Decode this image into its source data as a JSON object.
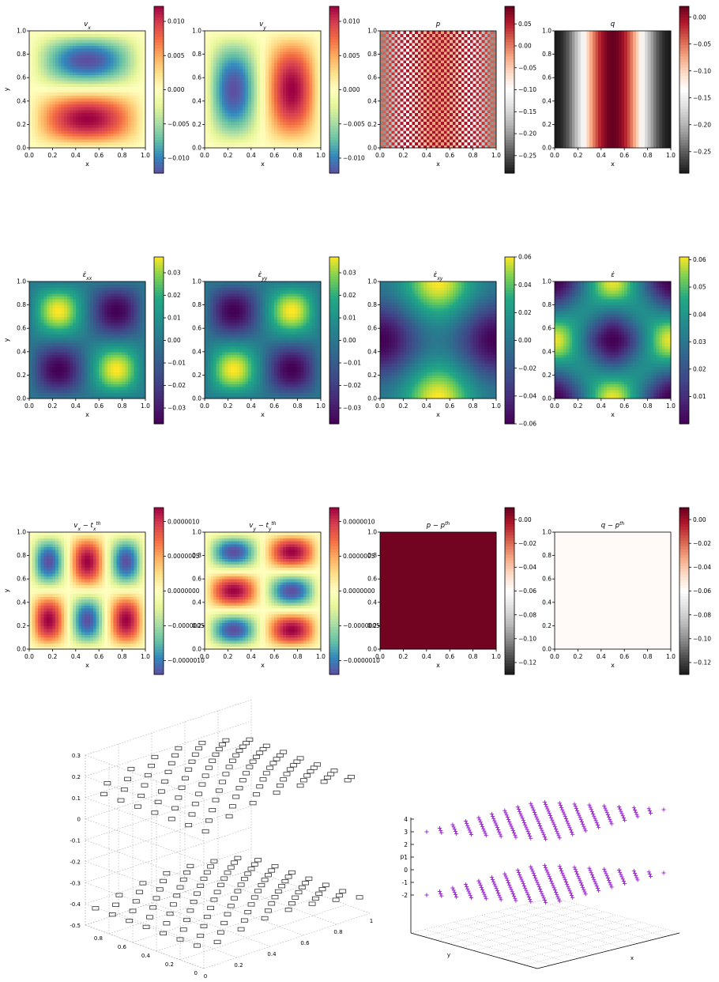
{
  "figure": {
    "grid_rows": 3,
    "grid_cols": 4,
    "panels": [
      {
        "id": "vx",
        "title_parts": [
          [
            "v",
            ""
          ],
          [
            "x",
            "sub"
          ]
        ],
        "colormap": "spectral",
        "field": "vx",
        "xlabel": "x",
        "ylabel": "y",
        "xticks": [
          "0.0",
          "0.2",
          "0.4",
          "0.6",
          "0.8",
          "1.0"
        ],
        "yticks": [
          "0.0",
          "0.2",
          "0.4",
          "0.6",
          "0.8",
          "1.0"
        ],
        "colorbar_ticks": [
          {
            "v": 0.01,
            "t": "0.010"
          },
          {
            "v": 0.005,
            "t": "0.005"
          },
          {
            "v": 0.0,
            "t": "0.000"
          },
          {
            "v": -0.005,
            "t": "−0.005"
          },
          {
            "v": -0.01,
            "t": "−0.010"
          }
        ],
        "colorbar_range": [
          -0.0122,
          0.0122
        ]
      },
      {
        "id": "vy",
        "title_parts": [
          [
            "v",
            ""
          ],
          [
            "y",
            "sub"
          ]
        ],
        "colormap": "spectral",
        "field": "vy",
        "xlabel": "x",
        "ylabel": "y",
        "xticks": [
          "0.0",
          "0.2",
          "0.4",
          "0.6",
          "0.8",
          "1.0"
        ],
        "yticks": [
          "0.0",
          "0.2",
          "0.4",
          "0.6",
          "0.8",
          "1.0"
        ],
        "colorbar_ticks": [
          {
            "v": 0.01,
            "t": "0.010"
          },
          {
            "v": 0.005,
            "t": "0.005"
          },
          {
            "v": 0.0,
            "t": "0.000"
          },
          {
            "v": -0.005,
            "t": "−0.005"
          },
          {
            "v": -0.01,
            "t": "−0.010"
          }
        ],
        "colorbar_range": [
          -0.0122,
          0.0122
        ]
      },
      {
        "id": "p",
        "title_parts": [
          [
            "p",
            ""
          ]
        ],
        "colormap": "rdgy",
        "field": "p",
        "xlabel": "x",
        "ylabel": "y",
        "xticks": [
          "0.0",
          "0.2",
          "0.4",
          "0.6",
          "0.8",
          "1.0"
        ],
        "yticks": [
          "0.0",
          "0.2",
          "0.4",
          "0.6",
          "0.8",
          "1.0"
        ],
        "colorbar_ticks": [
          {
            "v": 0.05,
            "t": "0.05"
          },
          {
            "v": 0.0,
            "t": "0.00"
          },
          {
            "v": -0.05,
            "t": "−0.05"
          },
          {
            "v": -0.1,
            "t": "−0.10"
          },
          {
            "v": -0.15,
            "t": "−0.15"
          },
          {
            "v": -0.2,
            "t": "−0.20"
          },
          {
            "v": -0.25,
            "t": "−0.25"
          }
        ],
        "colorbar_range": [
          -0.29,
          0.09
        ]
      },
      {
        "id": "q",
        "title_parts": [
          [
            "q",
            ""
          ]
        ],
        "colormap": "rdgy",
        "field": "q",
        "xlabel": "x",
        "ylabel": "y",
        "xticks": [
          "0.0",
          "0.2",
          "0.4",
          "0.6",
          "0.8",
          "1.0"
        ],
        "yticks": [
          "0.0",
          "0.2",
          "0.4",
          "0.6",
          "0.8",
          "1.0"
        ],
        "colorbar_ticks": [
          {
            "v": 0.0,
            "t": "0.00"
          },
          {
            "v": -0.05,
            "t": "−0.05"
          },
          {
            "v": -0.1,
            "t": "−0.10"
          },
          {
            "v": -0.15,
            "t": "−0.15"
          },
          {
            "v": -0.2,
            "t": "−0.20"
          },
          {
            "v": -0.25,
            "t": "−0.25"
          }
        ],
        "colorbar_range": [
          -0.29,
          0.02
        ]
      },
      {
        "id": "exx",
        "title_parts": [
          [
            "ε̇",
            ""
          ],
          [
            "xx",
            "sub"
          ]
        ],
        "colormap": "viridis",
        "field": "exx",
        "xlabel": "x",
        "ylabel": "y",
        "xticks": [
          "0.0",
          "0.2",
          "0.4",
          "0.6",
          "0.8",
          "1.0"
        ],
        "yticks": [
          "0.0",
          "0.2",
          "0.4",
          "0.6",
          "0.8",
          "1.0"
        ],
        "colorbar_ticks": [
          {
            "v": 0.03,
            "t": "0.03"
          },
          {
            "v": 0.02,
            "t": "0.02"
          },
          {
            "v": 0.01,
            "t": "0.01"
          },
          {
            "v": 0.0,
            "t": "0.00"
          },
          {
            "v": -0.01,
            "t": "−0.01"
          },
          {
            "v": -0.02,
            "t": "−0.02"
          },
          {
            "v": -0.03,
            "t": "−0.03"
          }
        ],
        "colorbar_range": [
          -0.037,
          0.037
        ]
      },
      {
        "id": "eyy",
        "title_parts": [
          [
            "ε̇",
            ""
          ],
          [
            "yy",
            "sub"
          ]
        ],
        "colormap": "viridis",
        "field": "eyy",
        "xlabel": "x",
        "ylabel": "y",
        "xticks": [
          "0.0",
          "0.2",
          "0.4",
          "0.6",
          "0.8",
          "1.0"
        ],
        "yticks": [
          "0.0",
          "0.2",
          "0.4",
          "0.6",
          "0.8",
          "1.0"
        ],
        "colorbar_ticks": [
          {
            "v": 0.03,
            "t": "0.03"
          },
          {
            "v": 0.02,
            "t": "0.02"
          },
          {
            "v": 0.01,
            "t": "0.01"
          },
          {
            "v": 0.0,
            "t": "0.00"
          },
          {
            "v": -0.01,
            "t": "−0.01"
          },
          {
            "v": -0.02,
            "t": "−0.02"
          },
          {
            "v": -0.03,
            "t": "−0.03"
          }
        ],
        "colorbar_range": [
          -0.037,
          0.037
        ]
      },
      {
        "id": "exy",
        "title_parts": [
          [
            "ε̇",
            ""
          ],
          [
            "xy",
            "sub"
          ]
        ],
        "colormap": "viridis",
        "field": "exy",
        "xlabel": "x",
        "ylabel": "y",
        "xticks": [
          "0.0",
          "0.2",
          "0.4",
          "0.6",
          "0.8",
          "1.0"
        ],
        "yticks": [
          "0.0",
          "0.2",
          "0.4",
          "0.6",
          "0.8",
          "1.0"
        ],
        "colorbar_ticks": [
          {
            "v": 0.06,
            "t": "0.06"
          },
          {
            "v": 0.04,
            "t": "0.04"
          },
          {
            "v": 0.02,
            "t": "0.02"
          },
          {
            "v": 0.0,
            "t": "0.00"
          },
          {
            "v": -0.02,
            "t": "−0.02"
          },
          {
            "v": -0.04,
            "t": "−0.04"
          },
          {
            "v": -0.06,
            "t": "−0.06"
          }
        ],
        "colorbar_range": [
          -0.06,
          0.06
        ]
      },
      {
        "id": "e",
        "title_parts": [
          [
            "ε̇",
            ""
          ]
        ],
        "colormap": "viridis",
        "field": "e",
        "xlabel": "x",
        "ylabel": "y",
        "xticks": [
          "0.0",
          "0.2",
          "0.4",
          "0.6",
          "0.8",
          "1.0"
        ],
        "yticks": [
          "0.0",
          "0.2",
          "0.4",
          "0.6",
          "0.8",
          "1.0"
        ],
        "colorbar_ticks": [
          {
            "v": 0.06,
            "t": "0.06"
          },
          {
            "v": 0.05,
            "t": "0.05"
          },
          {
            "v": 0.04,
            "t": "0.04"
          },
          {
            "v": 0.03,
            "t": "0.03"
          },
          {
            "v": 0.02,
            "t": "0.02"
          },
          {
            "v": 0.01,
            "t": "0.01"
          }
        ],
        "colorbar_range": [
          0.0,
          0.061
        ]
      },
      {
        "id": "vx_err",
        "title_parts": [
          [
            "v",
            ""
          ],
          [
            "x",
            "sub"
          ],
          [
            " − t",
            ""
          ],
          [
            "x",
            "sub"
          ],
          [
            "th",
            "sup"
          ]
        ],
        "colormap": "spectral",
        "field": "vx_err",
        "xlabel": "x",
        "ylabel": "y",
        "xticks": [
          "0.0",
          "0.2",
          "0.4",
          "0.6",
          "0.8",
          "1.0"
        ],
        "yticks": [
          "0.0",
          "0.2",
          "0.4",
          "0.6",
          "0.8",
          "1.0"
        ],
        "colorbar_ticks": [
          {
            "v": 1e-06,
            "t": "0.0000010"
          },
          {
            "v": 5e-07,
            "t": "0.0000005"
          },
          {
            "v": 0.0,
            "t": "0.0000000"
          },
          {
            "v": -5e-07,
            "t": "−0.0000005"
          },
          {
            "v": -1e-06,
            "t": "−0.0000010"
          }
        ],
        "colorbar_range": [
          -1.2e-06,
          1.2e-06
        ]
      },
      {
        "id": "vy_err",
        "title_parts": [
          [
            "v",
            ""
          ],
          [
            "y",
            "sub"
          ],
          [
            " − t",
            ""
          ],
          [
            "y",
            "sub"
          ],
          [
            "th",
            "sup"
          ]
        ],
        "colormap": "spectral",
        "field": "vy_err",
        "xlabel": "x",
        "ylabel": "y",
        "xticks": [
          "0.0",
          "0.2",
          "0.4",
          "0.6",
          "0.8",
          "1.0"
        ],
        "yticks": [
          "0.0",
          "0.2",
          "0.4",
          "0.6",
          "0.8",
          "1.0"
        ],
        "colorbar_ticks": [
          {
            "v": 1e-06,
            "t": "0.0000010"
          },
          {
            "v": 5e-07,
            "t": "0.0000005"
          },
          {
            "v": 0.0,
            "t": "0.0000000"
          },
          {
            "v": -5e-07,
            "t": "−0.0000005"
          },
          {
            "v": -1e-06,
            "t": "−0.0000010"
          }
        ],
        "colorbar_range": [
          -1.2e-06,
          1.2e-06
        ]
      },
      {
        "id": "p_err",
        "title_parts": [
          [
            "p − p",
            ""
          ],
          [
            "th",
            "sup"
          ]
        ],
        "colormap": "rdgy",
        "field": "p_err",
        "xlabel": "x",
        "ylabel": "y",
        "xticks": [
          "0.0",
          "0.2",
          "0.4",
          "0.6",
          "0.8",
          "1.0"
        ],
        "yticks": [
          "0.0",
          "0.2",
          "0.4",
          "0.6",
          "0.8",
          "1.0"
        ],
        "colorbar_ticks": [
          {
            "v": 0.0,
            "t": "0.00"
          },
          {
            "v": -0.02,
            "t": "−0.02"
          },
          {
            "v": -0.04,
            "t": "−0.04"
          },
          {
            "v": -0.06,
            "t": "−0.06"
          },
          {
            "v": -0.08,
            "t": "−0.08"
          },
          {
            "v": -0.1,
            "t": "−0.10"
          },
          {
            "v": -0.12,
            "t": "−0.12"
          }
        ],
        "colorbar_range": [
          -0.13,
          0.01
        ]
      },
      {
        "id": "q_err",
        "title_parts": [
          [
            "q − p",
            ""
          ],
          [
            "th",
            "sup"
          ]
        ],
        "colormap": "rdgy",
        "field": "q_err",
        "xlabel": "x",
        "ylabel": "y",
        "xticks": [
          "0.0",
          "0.2",
          "0.4",
          "0.6",
          "0.8",
          "1.0"
        ],
        "yticks": [
          "0.0",
          "0.2",
          "0.4",
          "0.6",
          "0.8",
          "1.0"
        ],
        "colorbar_ticks": [
          {
            "v": 0.0,
            "t": "0.00"
          },
          {
            "v": -0.02,
            "t": "−0.02"
          },
          {
            "v": -0.04,
            "t": "−0.04"
          },
          {
            "v": -0.06,
            "t": "−0.06"
          },
          {
            "v": -0.08,
            "t": "−0.08"
          },
          {
            "v": -0.1,
            "t": "−0.10"
          },
          {
            "v": -0.12,
            "t": "−0.12"
          }
        ],
        "colorbar_range": [
          -0.13,
          0.01
        ]
      }
    ]
  },
  "bottom_left_3d": {
    "z_ticks": [
      "0.3",
      "0.2",
      "0.1",
      "0",
      "-0.1",
      "-0.2",
      "-0.3",
      "-0.4",
      "-0.5"
    ],
    "y_ticks": [
      "0.8",
      "0.6",
      "0.4",
      "0.2",
      "0"
    ],
    "x_ticks": [
      "0",
      "0.2",
      "0.4",
      "0.6",
      "0.8",
      "1"
    ],
    "marker": "open-square",
    "color": "#333333"
  },
  "bottom_right_3d": {
    "z_label": "p",
    "z_ticks": [
      "4",
      "3",
      "2",
      "1",
      "0",
      "-1",
      "-2"
    ],
    "x_label": "x",
    "y_label": "y",
    "marker": "plus",
    "color": "#9a1fd0"
  },
  "chart_data": [
    {
      "type": "heatmap",
      "title": "v_x",
      "xlabel": "x",
      "ylabel": "y",
      "xlim": [
        0,
        1
      ],
      "ylim": [
        0,
        1
      ],
      "colorbar": [
        -0.0122,
        0.0122
      ],
      "pattern": "vx = 0.0122*sin(pi*x)*sin(2*pi*y): min at (0.5,0.75), max at (0.5,0.25)"
    },
    {
      "type": "heatmap",
      "title": "v_y",
      "xlabel": "x",
      "ylabel": "y",
      "xlim": [
        0,
        1
      ],
      "ylim": [
        0,
        1
      ],
      "colorbar": [
        -0.0122,
        0.0122
      ],
      "pattern": "vy = -0.0122*sin(2*pi*x)*sin(pi*y): min at (0.25,0.5), max at (0.75,0.5)"
    },
    {
      "type": "heatmap",
      "title": "p",
      "xlabel": "x",
      "ylabel": "y",
      "xlim": [
        0,
        1
      ],
      "ylim": [
        0,
        1
      ],
      "colorbar": [
        -0.29,
        0.09
      ],
      "pattern": "checkerboard oscillation around x-dependent profile, max at x=0.5"
    },
    {
      "type": "heatmap",
      "title": "q",
      "xlabel": "x",
      "ylabel": "y",
      "xlim": [
        0,
        1
      ],
      "ylim": [
        0,
        1
      ],
      "colorbar": [
        -0.29,
        0.02
      ],
      "pattern": "x-only profile, max 0.02 at x=0.5, min at x=0 and x=1"
    },
    {
      "type": "heatmap",
      "title": "eps_xx",
      "xlabel": "x",
      "ylabel": "y",
      "xlim": [
        0,
        1
      ],
      "ylim": [
        0,
        1
      ],
      "colorbar": [
        -0.037,
        0.037
      ],
      "pattern": "-0.037*sin(2*pi*x)*sin(2*pi*y)"
    },
    {
      "type": "heatmap",
      "title": "eps_yy",
      "xlabel": "x",
      "ylabel": "y",
      "xlim": [
        0,
        1
      ],
      "ylim": [
        0,
        1
      ],
      "colorbar": [
        -0.037,
        0.037
      ],
      "pattern": "0.037*sin(2*pi*x)*sin(2*pi*y)"
    },
    {
      "type": "heatmap",
      "title": "eps_xy",
      "xlabel": "x",
      "ylabel": "y",
      "xlim": [
        0,
        1
      ],
      "ylim": [
        0,
        1
      ],
      "colorbar": [
        -0.06,
        0.06
      ],
      "pattern": "max 0.06 at (0.5,0) and (0.5,1), min -0.06 at (0,0.5) and (1,0.5)"
    },
    {
      "type": "heatmap",
      "title": "eps",
      "xlabel": "x",
      "ylabel": "y",
      "xlim": [
        0,
        1
      ],
      "ylim": [
        0,
        1
      ],
      "colorbar": [
        0.0,
        0.061
      ],
      "pattern": "effective strain rate, minimum cross at (0.5,0.5)"
    },
    {
      "type": "heatmap",
      "title": "v_x - t_x^th",
      "xlabel": "x",
      "ylabel": "y",
      "xlim": [
        0,
        1
      ],
      "ylim": [
        0,
        1
      ],
      "colorbar": [
        -1.2e-06,
        1.2e-06
      ]
    },
    {
      "type": "heatmap",
      "title": "v_y - t_y^th",
      "xlabel": "x",
      "ylabel": "y",
      "xlim": [
        0,
        1
      ],
      "ylim": [
        0,
        1
      ],
      "colorbar": [
        -1.2e-06,
        1.2e-06
      ]
    },
    {
      "type": "heatmap",
      "title": "p - p^th",
      "xlabel": "x",
      "ylabel": "y",
      "xlim": [
        0,
        1
      ],
      "ylim": [
        0,
        1
      ],
      "colorbar": [
        -0.13,
        0.01
      ],
      "pattern": "uniform dark red"
    },
    {
      "type": "heatmap",
      "title": "q - p^th",
      "xlabel": "x",
      "ylabel": "y",
      "xlim": [
        0,
        1
      ],
      "ylim": [
        0,
        1
      ],
      "colorbar": [
        -0.13,
        0.01
      ],
      "pattern": "uniform light gray"
    },
    {
      "type": "scatter",
      "title": "",
      "zlim": [
        -0.5,
        0.3
      ],
      "pattern": "3D surface of open squares: two checkerboard layers near z=0.15 and z=-0.45"
    },
    {
      "type": "scatter",
      "title": "",
      "zlabel": "p",
      "xlabel": "x",
      "ylabel": "y",
      "zlim": [
        -2,
        4
      ],
      "pattern": "3D scatter of plus markers: two planes at z=3 and z=-2"
    }
  ]
}
